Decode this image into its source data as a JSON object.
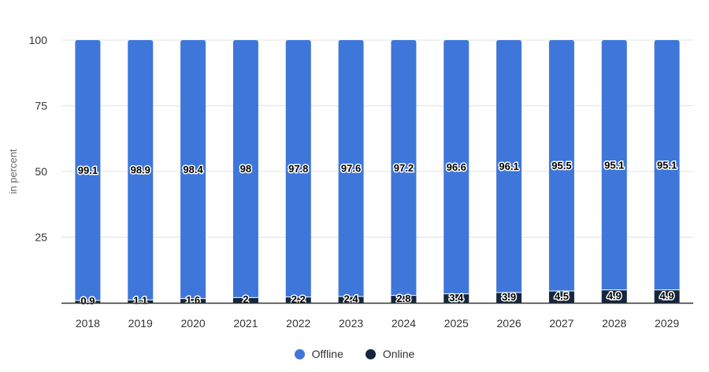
{
  "chart_data": {
    "type": "bar",
    "stacked": true,
    "categories": [
      "2018",
      "2019",
      "2020",
      "2021",
      "2022",
      "2023",
      "2024",
      "2025",
      "2026",
      "2027",
      "2028",
      "2029"
    ],
    "series": [
      {
        "name": "Online",
        "color": "#15263d",
        "values": [
          0.9,
          1.1,
          1.6,
          2,
          2.2,
          2.4,
          2.8,
          3.4,
          3.9,
          4.5,
          4.9,
          4.9
        ],
        "labels": [
          "0.9",
          "1.1",
          "1.6",
          "2",
          "2.2",
          "2.4",
          "2.8",
          "3.4",
          "3.9",
          "4.5",
          "4.9",
          "4.9"
        ]
      },
      {
        "name": "Offline",
        "color": "#3e77d9",
        "values": [
          99.1,
          98.9,
          98.4,
          98,
          97.8,
          97.6,
          97.2,
          96.6,
          96.1,
          95.5,
          95.1,
          95.1
        ],
        "labels": [
          "99.1",
          "98.9",
          "98.4",
          "98",
          "97.8",
          "97.6",
          "97.2",
          "96.6",
          "96.1",
          "95.5",
          "95.1",
          "95.1"
        ]
      }
    ],
    "ylabel": "in percent",
    "xlabel": "",
    "ylim": [
      0,
      100
    ],
    "yticks": [
      0,
      25,
      50,
      75,
      100
    ],
    "ytick_labels": [
      "",
      "25",
      "50",
      "75",
      "100"
    ],
    "grid": true,
    "legend_position": "bottom-center"
  },
  "legend": {
    "offline_label": "Offline",
    "online_label": "Online",
    "offline_color": "#3e77d9",
    "online_color": "#15263d"
  }
}
